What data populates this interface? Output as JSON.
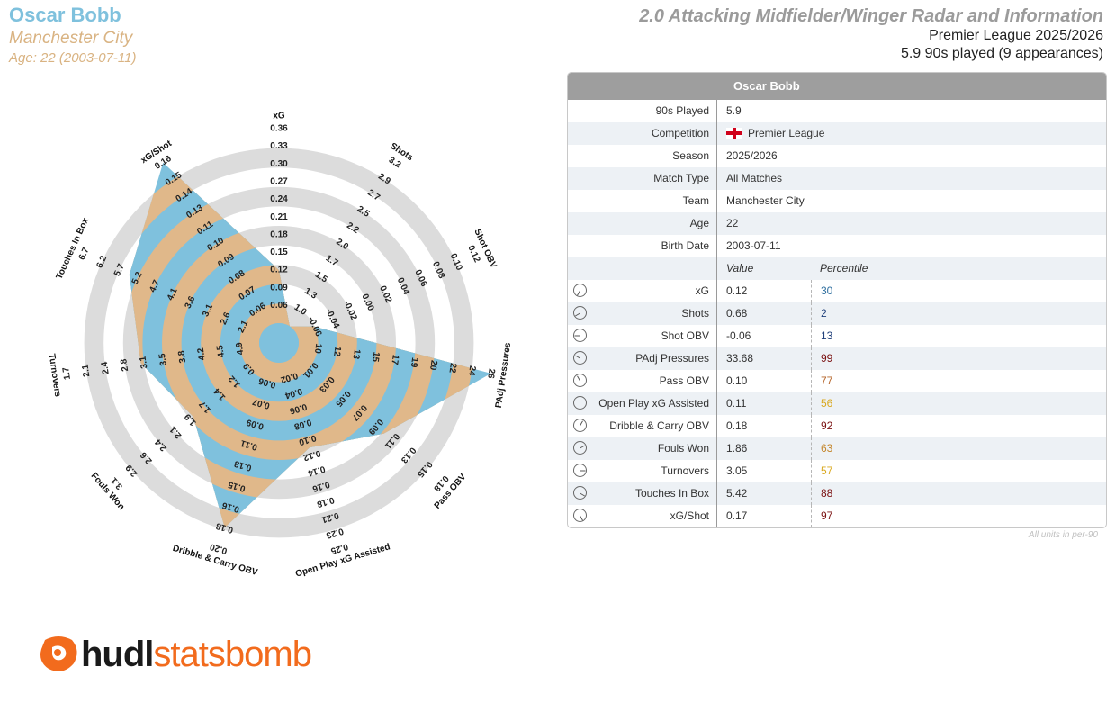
{
  "header": {
    "player_name": "Oscar Bobb",
    "team": "Manchester City",
    "age_line": "Age: 22 (2003-07-11)",
    "title": "2.0 Attacking Midfielder/Winger Radar and Information",
    "league_season": "Premier League 2025/2026",
    "played": "5.9 90s played (9 appearances)"
  },
  "colors": {
    "player_fill": "#7fc1dd",
    "alt_fill": "#e0b88a",
    "ring_gray": "#dcdcdc"
  },
  "chart_data": {
    "type": "radar",
    "axes": [
      {
        "name": "xG",
        "ticks": [
          "0.06",
          "0.09",
          "0.12",
          "0.15",
          "0.18",
          "0.21",
          "0.24",
          "0.27",
          "0.30",
          "0.33",
          "0.36"
        ],
        "value": 0.12
      },
      {
        "name": "Shots",
        "ticks": [
          "1.0",
          "1.3",
          "1.5",
          "1.7",
          "2.0",
          "2.2",
          "2.5",
          "2.7",
          "2.9",
          "3.2"
        ],
        "value": 0.68
      },
      {
        "name": "Shot OBV",
        "ticks": [
          "-0.06",
          "-0.04",
          "-0.02",
          "0.00",
          "0.02",
          "0.04",
          "0.06",
          "0.08",
          "0.10",
          "0.12"
        ],
        "value": -0.06
      },
      {
        "name": "PAdj Pressures",
        "ticks": [
          "10",
          "12",
          "13",
          "15",
          "17",
          "19",
          "20",
          "22",
          "24",
          "26"
        ],
        "value": 33.68
      },
      {
        "name": "Pass OBV",
        "ticks": [
          "0.01",
          "0.03",
          "0.05",
          "0.07",
          "0.09",
          "0.11",
          "0.13",
          "0.15",
          "0.18"
        ],
        "value": 0.1
      },
      {
        "name": "Open Play xG Assisted",
        "ticks": [
          "0.02",
          "0.04",
          "0.06",
          "0.08",
          "0.10",
          "0.12",
          "0.14",
          "0.16",
          "0.18",
          "0.21",
          "0.23",
          "0.25"
        ],
        "value": 0.11
      },
      {
        "name": "Dribble & Carry OBV",
        "ticks": [
          "0.06",
          "0.07",
          "0.09",
          "0.11",
          "0.13",
          "0.15",
          "0.16",
          "0.18",
          "0.20"
        ],
        "value": 0.18
      },
      {
        "name": "Fouls Won",
        "ticks": [
          "0.9",
          "1.2",
          "1.4",
          "1.7",
          "1.9",
          "2.1",
          "2.4",
          "2.6",
          "2.9",
          "3.1"
        ],
        "value": 1.86
      },
      {
        "name": "Turnovers",
        "ticks": [
          "4.9",
          "4.5",
          "4.2",
          "3.8",
          "3.5",
          "3.1",
          "2.8",
          "2.4",
          "2.1",
          "1.7"
        ],
        "value": 3.05
      },
      {
        "name": "Touches In Box",
        "ticks": [
          "2.1",
          "2.6",
          "3.1",
          "3.6",
          "4.1",
          "4.7",
          "5.2",
          "5.7",
          "6.2",
          "6.7"
        ],
        "value": 5.42
      },
      {
        "name": "xG/Shot",
        "ticks": [
          "0.06",
          "0.07",
          "0.08",
          "0.09",
          "0.10",
          "0.11",
          "0.13",
          "0.14",
          "0.15",
          "0.16"
        ],
        "value": 0.17
      }
    ]
  },
  "table": {
    "title": "Oscar Bobb",
    "info": [
      {
        "label": "90s Played",
        "value": "5.9"
      },
      {
        "label": "Competition",
        "value": "Premier League",
        "flag": true
      },
      {
        "label": "Season",
        "value": "2025/2026"
      },
      {
        "label": "Match Type",
        "value": "All Matches"
      },
      {
        "label": "Team",
        "value": "Manchester City"
      },
      {
        "label": "Age",
        "value": "22"
      },
      {
        "label": "Birth Date",
        "value": "2003-07-11"
      }
    ],
    "col_value": "Value",
    "col_percentile": "Percentile",
    "metrics": [
      {
        "label": "xG",
        "value": "0.12",
        "percentile": "30",
        "color": "#2f6f9f"
      },
      {
        "label": "Shots",
        "value": "0.68",
        "percentile": "2",
        "color": "#1f3f7a"
      },
      {
        "label": "Shot OBV",
        "value": "-0.06",
        "percentile": "13",
        "color": "#1f3f7a"
      },
      {
        "label": "PAdj Pressures",
        "value": "33.68",
        "percentile": "99",
        "color": "#7a1010"
      },
      {
        "label": "Pass OBV",
        "value": "0.10",
        "percentile": "77",
        "color": "#b5652a"
      },
      {
        "label": "Open Play xG Assisted",
        "value": "0.11",
        "percentile": "56",
        "color": "#d9a81e"
      },
      {
        "label": "Dribble & Carry OBV",
        "value": "0.18",
        "percentile": "92",
        "color": "#7a1010"
      },
      {
        "label": "Fouls Won",
        "value": "1.86",
        "percentile": "63",
        "color": "#c4862c"
      },
      {
        "label": "Turnovers",
        "value": "3.05",
        "percentile": "57",
        "color": "#d9a81e"
      },
      {
        "label": "Touches In Box",
        "value": "5.42",
        "percentile": "88",
        "color": "#7a1010"
      },
      {
        "label": "xG/Shot",
        "value": "0.17",
        "percentile": "97",
        "color": "#7a1010"
      }
    ],
    "footnote": "All units in per-90"
  },
  "logo": {
    "part1": "hudl",
    "part2": "statsbomb"
  }
}
